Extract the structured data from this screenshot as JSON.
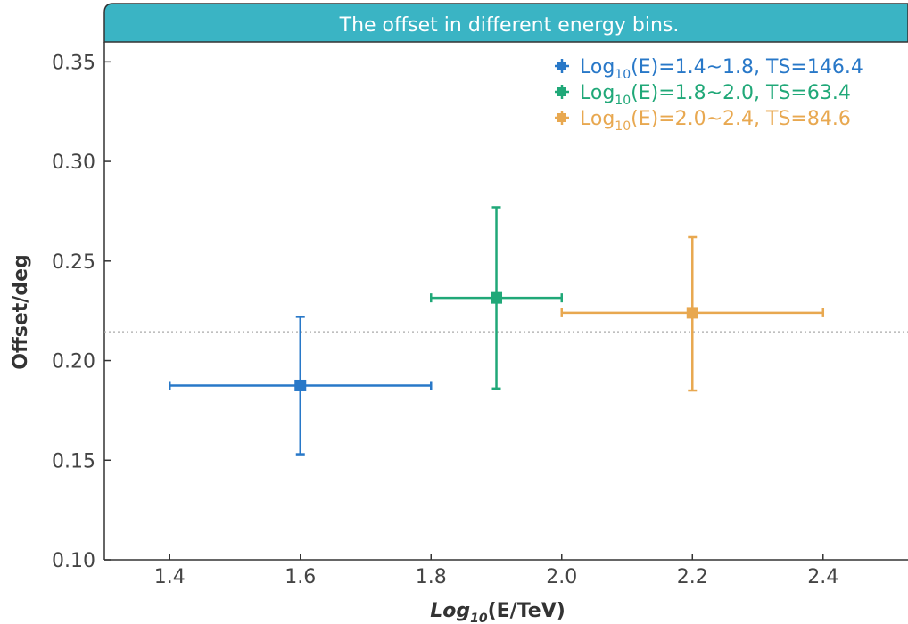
{
  "chart_data": {
    "type": "scatter",
    "title": "The offset in different energy bins.",
    "xlabel": {
      "prefix": "Log",
      "sub": "10",
      "suffix": "(E/TeV)"
    },
    "ylabel": "Offset/deg",
    "xlim": [
      1.3,
      2.53
    ],
    "ylim": [
      0.1,
      0.36
    ],
    "xticks": [
      "1.4",
      "1.6",
      "1.8",
      "2.0",
      "2.2",
      "2.4"
    ],
    "yticks": [
      "0.10",
      "0.15",
      "0.20",
      "0.25",
      "0.30",
      "0.35"
    ],
    "reference_line": {
      "y": 0.2145,
      "style": "dotted"
    },
    "legend_position": "top-right",
    "grid": false,
    "series": [
      {
        "name": "Log10(E)=1.4~1.8, TS=146.4",
        "label_pre": "Log",
        "label_sub": "10",
        "label_post": "(E)=1.4~1.8, TS=146.4",
        "color": "#2878c8",
        "x": 1.6,
        "y": 0.1875,
        "xerr": [
          1.4,
          1.8
        ],
        "yerr": [
          0.153,
          0.222
        ]
      },
      {
        "name": "Log10(E)=1.8~2.0, TS=63.4",
        "label_pre": "Log",
        "label_sub": "10",
        "label_post": "(E)=1.8~2.0, TS=63.4",
        "color": "#20a878",
        "x": 1.9,
        "y": 0.2315,
        "xerr": [
          1.8,
          2.0
        ],
        "yerr": [
          0.186,
          0.277
        ]
      },
      {
        "name": "Log10(E)=2.0~2.4, TS=84.6",
        "label_pre": "Log",
        "label_sub": "10",
        "label_post": "(E)=2.0~2.4, TS=84.6",
        "color": "#e8a850",
        "x": 2.2,
        "y": 0.224,
        "xerr": [
          2.0,
          2.4
        ],
        "yerr": [
          0.185,
          0.262
        ]
      }
    ],
    "colors": {
      "title_bar": "#3ab4c4",
      "axis": "#333333",
      "reference_line": "#aaaaaa"
    }
  }
}
